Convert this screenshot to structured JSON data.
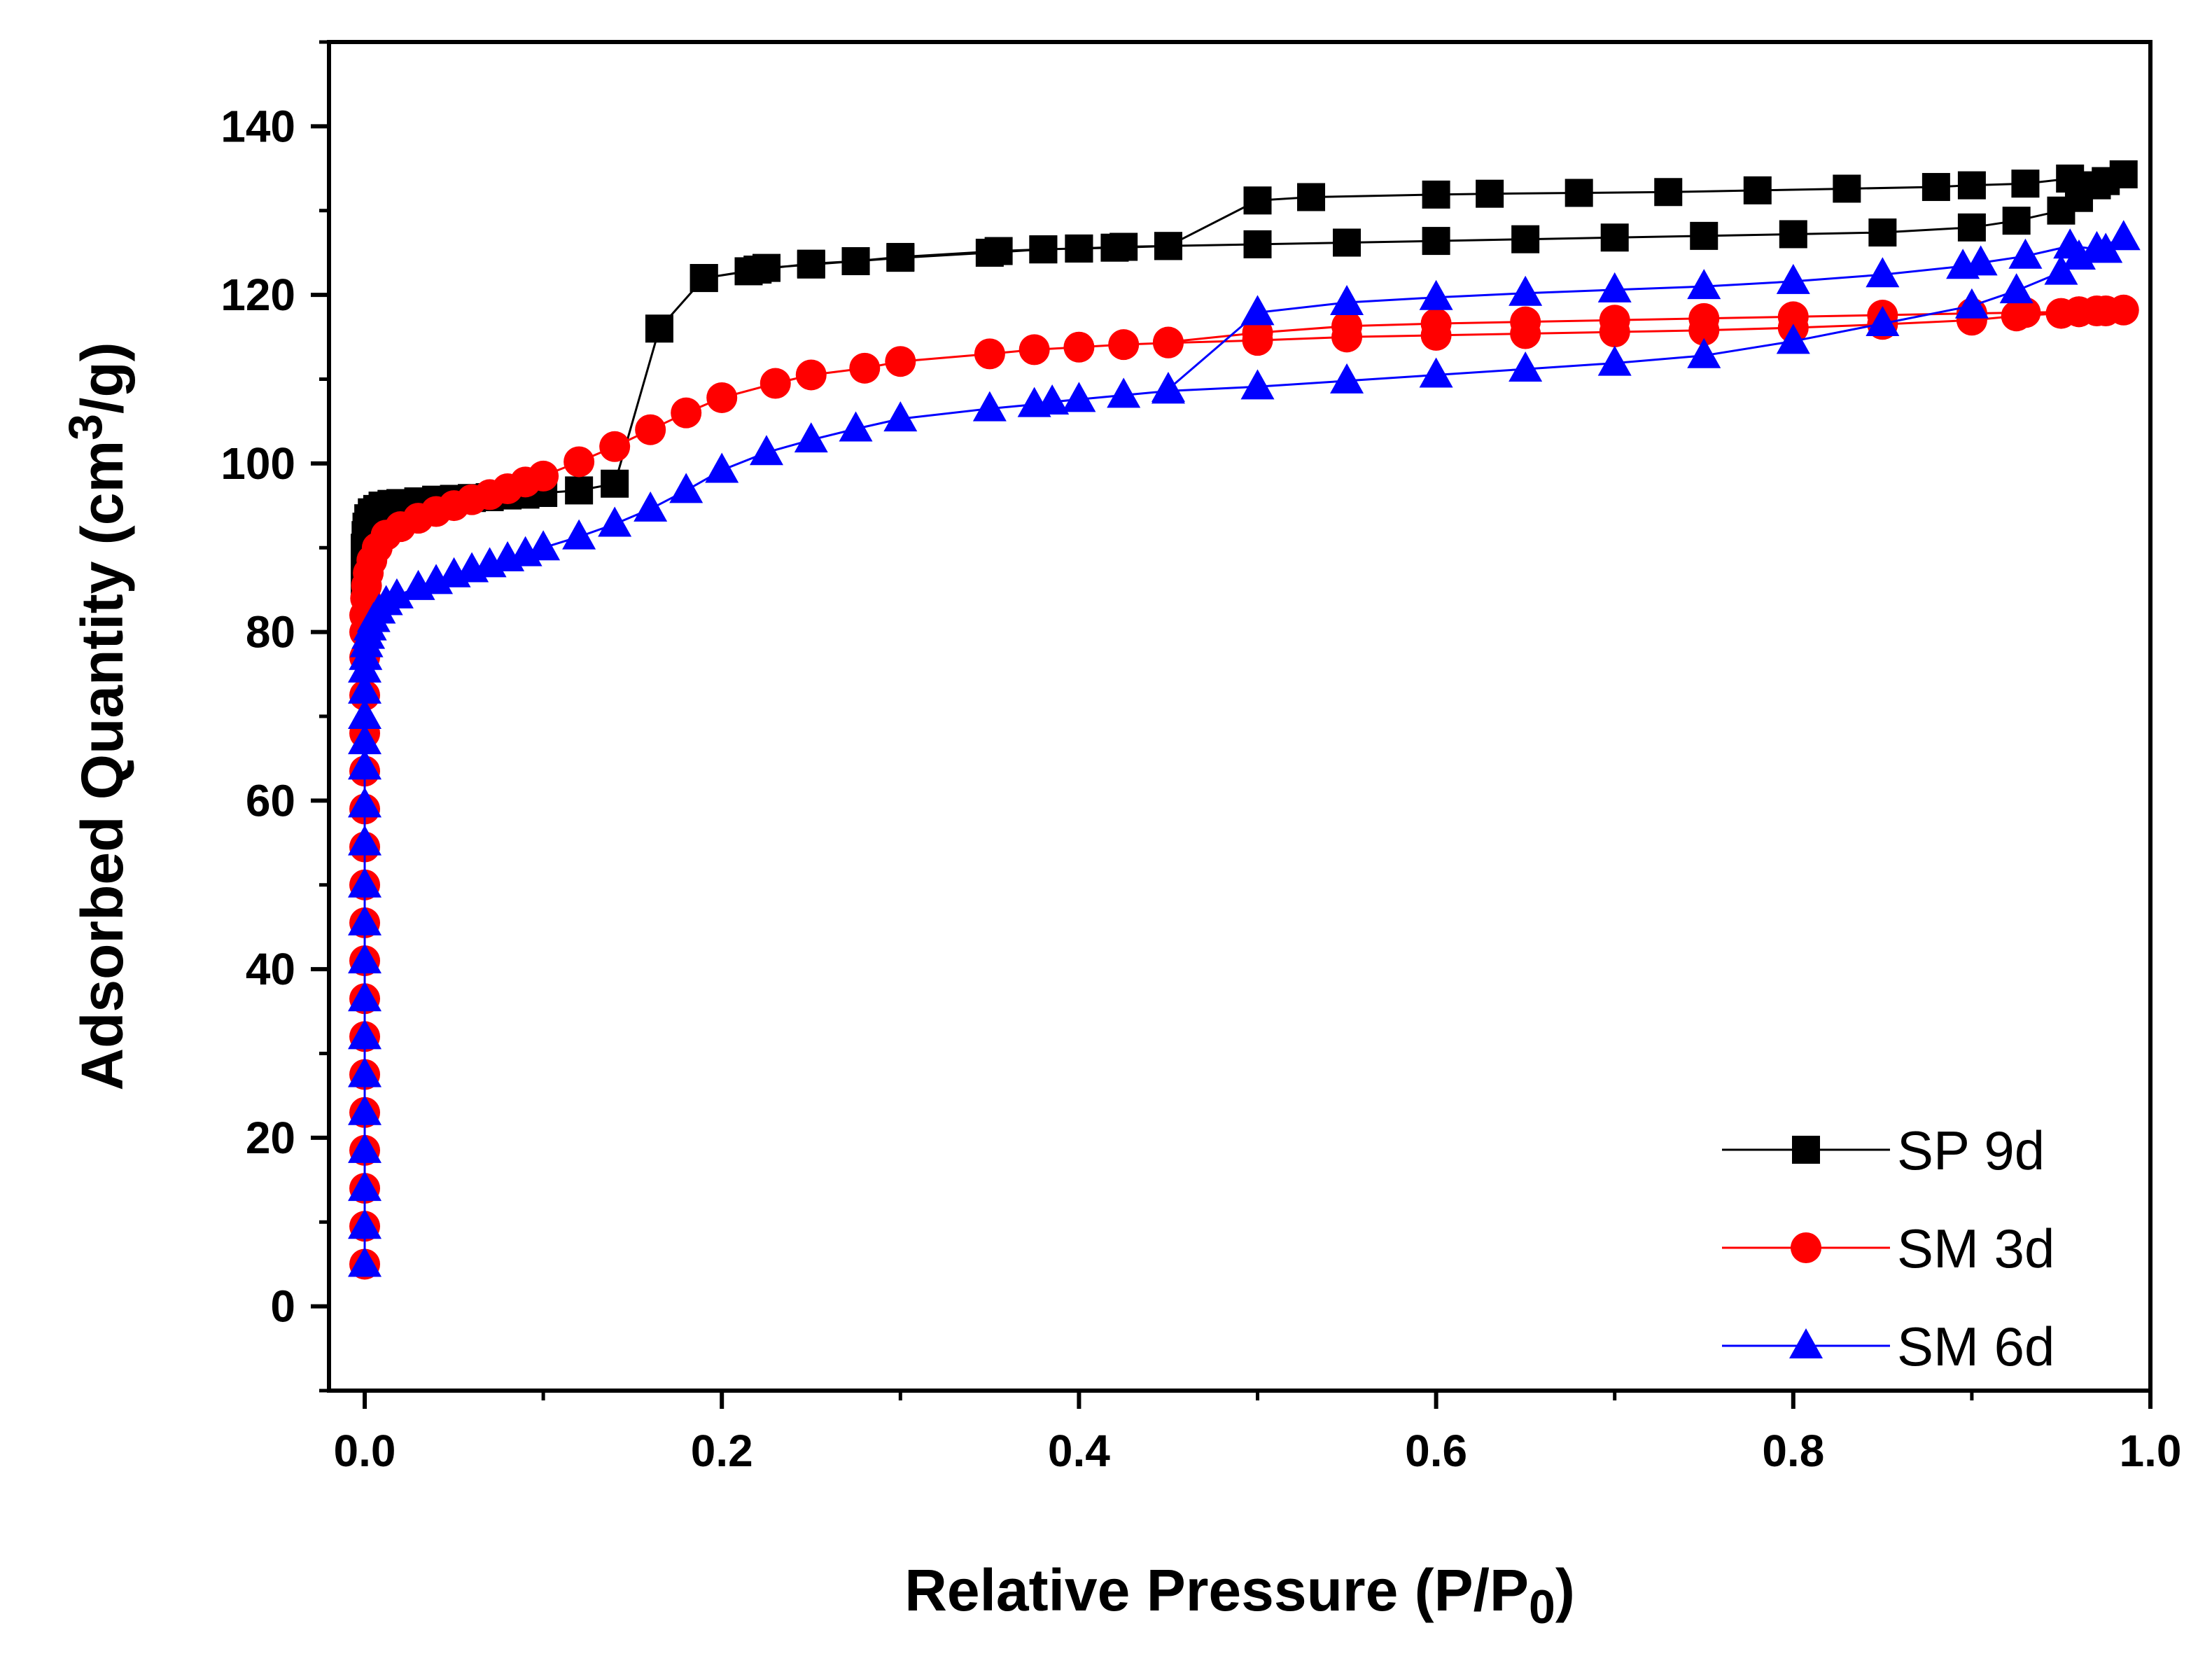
{
  "chart_data": {
    "type": "line",
    "title": "",
    "xlabel": "Relative Pressure (P/P",
    "xlabel_sub": "0",
    "xlabel_end": ")",
    "ylabel": "Adsorbed Quantity (cm",
    "ylabel_sup": "3",
    "ylabel_end": "/g)",
    "xlim": [
      -0.02,
      1.0
    ],
    "ylim": [
      -10,
      150
    ],
    "xticks": [
      "0.0",
      "0.2",
      "0.4",
      "0.6",
      "0.8",
      "1.0"
    ],
    "yticks": [
      "0",
      "20",
      "40",
      "60",
      "80",
      "100",
      "120",
      "140"
    ],
    "legend_position": "bottom-right",
    "series": [
      {
        "name": "SP 9d",
        "color": "#000000",
        "marker": "square",
        "x": [
          0.0,
          0.0,
          0.0,
          0.0005,
          0.001,
          0.002,
          0.004,
          0.007,
          0.01,
          0.015,
          0.02,
          0.03,
          0.04,
          0.05,
          0.06,
          0.07,
          0.08,
          0.09,
          0.1,
          0.12,
          0.14,
          0.165,
          0.19,
          0.22,
          0.25,
          0.275,
          0.3,
          0.35,
          0.38,
          0.4,
          0.425,
          0.45,
          0.5,
          0.55,
          0.6,
          0.65,
          0.7,
          0.75,
          0.8,
          0.85,
          0.9,
          0.925,
          0.95,
          0.96,
          0.97,
          0.985,
          0.975,
          0.955,
          0.93,
          0.9,
          0.88,
          0.83,
          0.78,
          0.73,
          0.68,
          0.63,
          0.6,
          0.53,
          0.5,
          0.45,
          0.42,
          0.4,
          0.38,
          0.355,
          0.3,
          0.275,
          0.25,
          0.225,
          0.215,
          0.19
        ],
        "y": [
          86,
          88,
          90,
          91.5,
          92.5,
          93.5,
          94.2,
          94.6,
          95,
          95.2,
          95.3,
          95.5,
          95.7,
          95.8,
          95.9,
          96,
          96.2,
          96.3,
          96.5,
          96.8,
          97.6,
          116,
          122,
          123,
          123.7,
          124,
          124.4,
          125,
          125.4,
          125.5,
          125.7,
          125.8,
          126,
          126.2,
          126.4,
          126.6,
          126.8,
          127,
          127.2,
          127.4,
          128,
          128.8,
          130,
          131.5,
          133,
          134.3,
          133.5,
          133.8,
          133.2,
          133,
          132.8,
          132.6,
          132.4,
          132.2,
          132.1,
          132,
          131.9,
          131.6,
          131.2,
          125.8,
          125.6,
          125.5,
          125.4,
          125.2,
          124.5,
          124,
          123.6,
          123.2,
          122.8,
          122
        ]
      },
      {
        "name": "SM 3d",
        "color": "#ff0000",
        "marker": "circle",
        "x": [
          0.0,
          0.0,
          0.0,
          0.0,
          0.0,
          0.0,
          0.0,
          0.0,
          0.0,
          0.0,
          0.0,
          0.0,
          0.0,
          0.0,
          0.0,
          0.0,
          0.0,
          0.0,
          0.0,
          0.0005,
          0.001,
          0.002,
          0.004,
          0.007,
          0.012,
          0.02,
          0.03,
          0.04,
          0.05,
          0.06,
          0.07,
          0.08,
          0.09,
          0.1,
          0.12,
          0.14,
          0.16,
          0.18,
          0.2,
          0.23,
          0.25,
          0.28,
          0.3,
          0.35,
          0.375,
          0.4,
          0.425,
          0.45,
          0.5,
          0.55,
          0.6,
          0.65,
          0.7,
          0.75,
          0.8,
          0.85,
          0.9,
          0.925,
          0.95,
          0.96,
          0.97,
          0.985,
          0.975,
          0.96,
          0.93,
          0.9,
          0.85,
          0.8,
          0.75,
          0.7,
          0.65,
          0.6,
          0.55,
          0.5,
          0.45
        ],
        "y": [
          5,
          9.5,
          14,
          18.5,
          23,
          27.5,
          32,
          36.5,
          41,
          45.5,
          50,
          54.5,
          59,
          63.5,
          68,
          72.5,
          77,
          80,
          82,
          84,
          85.5,
          87,
          88.5,
          90,
          91.5,
          92.5,
          93.5,
          94.3,
          95,
          95.7,
          96.3,
          97,
          97.8,
          98.5,
          100.2,
          102,
          104,
          106,
          107.8,
          109.5,
          110.5,
          111.3,
          112.1,
          113,
          113.5,
          113.8,
          114.1,
          114.3,
          114.6,
          115,
          115.2,
          115.4,
          115.6,
          115.8,
          116.1,
          116.5,
          117,
          117.5,
          117.8,
          118,
          118.1,
          118.2,
          118.1,
          118,
          117.9,
          117.8,
          117.6,
          117.4,
          117.2,
          117,
          116.8,
          116.6,
          116.3,
          115.5,
          114.4
        ]
      },
      {
        "name": "SM 6d",
        "color": "#0000ff",
        "marker": "triangle",
        "x": [
          0.0,
          0.0,
          0.0,
          0.0,
          0.0,
          0.0,
          0.0,
          0.0,
          0.0,
          0.0,
          0.0,
          0.0,
          0.0,
          0.0,
          0.0,
          0.0,
          0.0,
          0.0,
          0.0005,
          0.001,
          0.002,
          0.003,
          0.005,
          0.008,
          0.012,
          0.018,
          0.03,
          0.04,
          0.05,
          0.06,
          0.07,
          0.08,
          0.09,
          0.1,
          0.12,
          0.14,
          0.16,
          0.18,
          0.2,
          0.225,
          0.25,
          0.275,
          0.3,
          0.35,
          0.375,
          0.385,
          0.4,
          0.425,
          0.45,
          0.5,
          0.55,
          0.6,
          0.65,
          0.7,
          0.75,
          0.8,
          0.85,
          0.9,
          0.925,
          0.95,
          0.96,
          0.97,
          0.985,
          0.975,
          0.955,
          0.93,
          0.905,
          0.895,
          0.85,
          0.8,
          0.75,
          0.7,
          0.65,
          0.6,
          0.55,
          0.5,
          0.45
        ],
        "y": [
          5,
          9.5,
          14,
          18.5,
          23,
          27.5,
          32,
          36.5,
          41,
          45.5,
          50,
          55,
          59.5,
          64,
          67,
          70,
          73,
          75.5,
          77,
          78.5,
          79.5,
          80.5,
          81.5,
          82.5,
          83.5,
          84.3,
          85.3,
          86,
          86.8,
          87.4,
          88,
          88.7,
          89.3,
          90,
          91.3,
          92.8,
          94.6,
          96.8,
          99.2,
          101.3,
          102.8,
          104.1,
          105.3,
          106.5,
          107,
          107.3,
          107.6,
          108.1,
          108.6,
          109.1,
          109.8,
          110.5,
          111.2,
          111.9,
          112.8,
          114.5,
          116.6,
          118.7,
          120.5,
          122.7,
          124.5,
          125.5,
          126.8,
          125.3,
          125.8,
          124.6,
          123.8,
          123.4,
          122.4,
          121.6,
          121,
          120.6,
          120.2,
          119.7,
          119.1,
          117.9,
          108.8
        ]
      }
    ]
  }
}
